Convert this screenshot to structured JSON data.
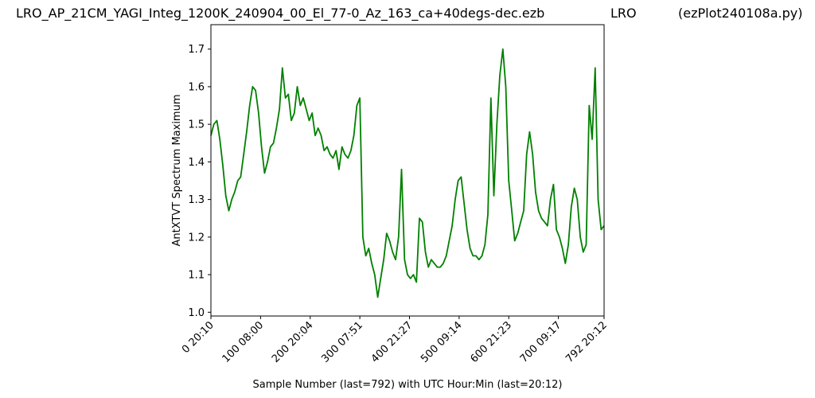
{
  "header": {
    "title": "LRO_AP_21CM_YAGI_Integ_1200K_240904_00_El_77-0_Az_163_ca+40degs-dec.ezb",
    "site": "LRO",
    "script": "(ezPlot240108a.py)"
  },
  "chart_data": {
    "type": "line",
    "title": "",
    "xlabel": "Sample Number (last=792) with UTC Hour:Min (last=20:12)",
    "ylabel": "AntXTVT Spectrum Maximum",
    "xlim": [
      0,
      792
    ],
    "ylim": [
      0.99,
      1.765
    ],
    "grid": false,
    "legend": "none",
    "color": "#008000",
    "xticks": [
      {
        "value": 0,
        "label": "0  20:10"
      },
      {
        "value": 100,
        "label": "100  08:00"
      },
      {
        "value": 200,
        "label": "200  20:04"
      },
      {
        "value": 300,
        "label": "300  07:51"
      },
      {
        "value": 400,
        "label": "400  21:27"
      },
      {
        "value": 500,
        "label": "500  09:14"
      },
      {
        "value": 600,
        "label": "600  21:23"
      },
      {
        "value": 700,
        "label": "700  09:17"
      },
      {
        "value": 792,
        "label": "792  20:12"
      }
    ],
    "yticks": [
      {
        "value": 1.0,
        "label": "1.0"
      },
      {
        "value": 1.1,
        "label": "1.1"
      },
      {
        "value": 1.2,
        "label": "1.2"
      },
      {
        "value": 1.3,
        "label": "1.3"
      },
      {
        "value": 1.4,
        "label": "1.4"
      },
      {
        "value": 1.5,
        "label": "1.5"
      },
      {
        "value": 1.6,
        "label": "1.6"
      },
      {
        "value": 1.7,
        "label": "1.7"
      }
    ],
    "series": [
      {
        "x": [
          0,
          6,
          12,
          18,
          24,
          30,
          36,
          42,
          48,
          54,
          60,
          66,
          72,
          78,
          84,
          90,
          96,
          102,
          108,
          114,
          120,
          126,
          132,
          138,
          144,
          150,
          156,
          162,
          168,
          174,
          180,
          186,
          192,
          198,
          204,
          210,
          216,
          222,
          228,
          234,
          240,
          246,
          252,
          258,
          264,
          270,
          276,
          282,
          288,
          294,
          300,
          306,
          312,
          318,
          324,
          330,
          336,
          342,
          348,
          354,
          360,
          366,
          372,
          378,
          384,
          390,
          396,
          402,
          408,
          414,
          420,
          426,
          432,
          438,
          444,
          450,
          456,
          462,
          468,
          474,
          480,
          486,
          492,
          498,
          504,
          510,
          516,
          522,
          528,
          534,
          540,
          546,
          552,
          558,
          564,
          570,
          576,
          582,
          588,
          594,
          600,
          606,
          612,
          618,
          624,
          630,
          636,
          642,
          648,
          654,
          660,
          666,
          672,
          678,
          684,
          690,
          696,
          702,
          708,
          714,
          720,
          726,
          732,
          738,
          744,
          750,
          756,
          762,
          768,
          774,
          780,
          786,
          792
        ],
        "y": [
          1.47,
          1.5,
          1.51,
          1.46,
          1.39,
          1.31,
          1.27,
          1.3,
          1.32,
          1.35,
          1.36,
          1.42,
          1.48,
          1.55,
          1.6,
          1.59,
          1.53,
          1.44,
          1.37,
          1.4,
          1.44,
          1.45,
          1.49,
          1.54,
          1.65,
          1.57,
          1.58,
          1.51,
          1.53,
          1.6,
          1.55,
          1.57,
          1.54,
          1.51,
          1.53,
          1.47,
          1.49,
          1.47,
          1.43,
          1.44,
          1.42,
          1.41,
          1.43,
          1.38,
          1.44,
          1.42,
          1.41,
          1.43,
          1.47,
          1.55,
          1.57,
          1.2,
          1.15,
          1.17,
          1.13,
          1.1,
          1.04,
          1.09,
          1.14,
          1.21,
          1.19,
          1.16,
          1.14,
          1.2,
          1.38,
          1.14,
          1.1,
          1.09,
          1.1,
          1.08,
          1.25,
          1.24,
          1.16,
          1.12,
          1.14,
          1.13,
          1.12,
          1.12,
          1.13,
          1.15,
          1.19,
          1.23,
          1.3,
          1.35,
          1.36,
          1.29,
          1.22,
          1.17,
          1.15,
          1.15,
          1.14,
          1.15,
          1.18,
          1.26,
          1.57,
          1.31,
          1.5,
          1.63,
          1.7,
          1.6,
          1.35,
          1.27,
          1.19,
          1.21,
          1.24,
          1.27,
          1.42,
          1.48,
          1.42,
          1.32,
          1.27,
          1.25,
          1.24,
          1.23,
          1.3,
          1.34,
          1.22,
          1.2,
          1.17,
          1.13,
          1.18,
          1.28,
          1.33,
          1.3,
          1.2,
          1.16,
          1.18,
          1.55,
          1.46,
          1.65,
          1.3,
          1.22,
          1.23
        ]
      }
    ]
  }
}
